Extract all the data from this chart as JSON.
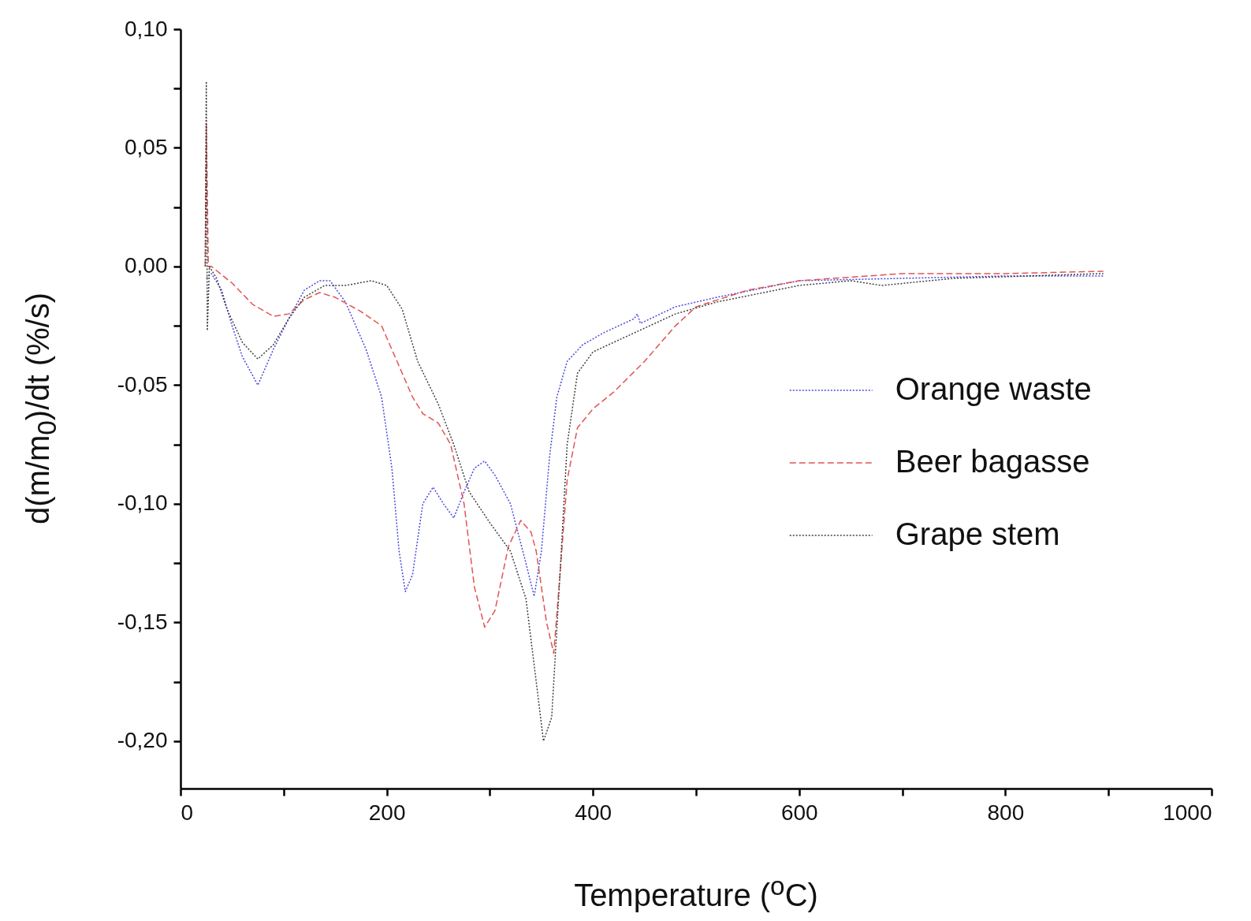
{
  "chart_data": {
    "type": "line",
    "xlabel": "Temperature ($^{o}$C)",
    "ylabel": "d(m/m$_{0}$)/dt (%/s)",
    "xlim": [
      0,
      1000
    ],
    "ylim": [
      -0.22,
      0.1
    ],
    "xticks": [
      0,
      {
        "value": 100,
        "label": null
      },
      200,
      {
        "value": 300,
        "label": null
      },
      400,
      {
        "value": 500,
        "label": null
      },
      600,
      {
        "value": 700,
        "label": null
      },
      800,
      {
        "value": 900,
        "label": null
      },
      1000
    ],
    "yticks": [
      {
        "value": -0.2,
        "label": "-0,20"
      },
      {
        "value": -0.175,
        "label": null
      },
      {
        "value": -0.15,
        "label": "-0,15"
      },
      {
        "value": -0.125,
        "label": null
      },
      {
        "value": -0.1,
        "label": "-0,10"
      },
      {
        "value": -0.075,
        "label": null
      },
      {
        "value": -0.05,
        "label": "-0,05"
      },
      {
        "value": -0.025,
        "label": null
      },
      {
        "value": 0,
        "label": "0,00"
      },
      {
        "value": 0.025,
        "label": null
      },
      {
        "value": 0.05,
        "label": "0,05"
      },
      {
        "value": 0.075,
        "label": null
      },
      {
        "value": 0.1,
        "label": "0,10"
      }
    ],
    "grid": false,
    "legend": "right",
    "series": [
      {
        "name": "Orange waste",
        "color": "#4848e0",
        "line_style": "dotted",
        "x": [
          25,
          30,
          40,
          50,
          60,
          75,
          90,
          105,
          120,
          135,
          145,
          160,
          180,
          195,
          205,
          212,
          218,
          225,
          235,
          245,
          255,
          265,
          275,
          285,
          295,
          305,
          320,
          335,
          343,
          350,
          358,
          365,
          375,
          390,
          410,
          440,
          443,
          446,
          480,
          520,
          600,
          700,
          800,
          895
        ],
        "values": [
          -0.005,
          -0.003,
          -0.01,
          -0.025,
          -0.038,
          -0.05,
          -0.035,
          -0.022,
          -0.01,
          -0.006,
          -0.006,
          -0.015,
          -0.035,
          -0.055,
          -0.085,
          -0.12,
          -0.137,
          -0.13,
          -0.1,
          -0.093,
          -0.1,
          -0.106,
          -0.095,
          -0.085,
          -0.082,
          -0.088,
          -0.1,
          -0.125,
          -0.139,
          -0.12,
          -0.08,
          -0.055,
          -0.04,
          -0.033,
          -0.028,
          -0.022,
          -0.02,
          -0.024,
          -0.017,
          -0.013,
          -0.006,
          -0.005,
          -0.004,
          -0.004
        ]
      },
      {
        "name": "Beer bagasse",
        "color": "#e05555",
        "line_style": "dashed",
        "x": [
          24,
          25,
          27,
          30,
          50,
          70,
          90,
          105,
          120,
          135,
          150,
          175,
          195,
          210,
          225,
          235,
          250,
          262,
          275,
          285,
          295,
          305,
          318,
          330,
          340,
          345,
          355,
          362,
          368,
          375,
          385,
          400,
          420,
          450,
          480,
          500,
          550,
          600,
          700,
          800,
          895
        ],
        "values": [
          0,
          0.06,
          0,
          0,
          -0.007,
          -0.016,
          -0.021,
          -0.02,
          -0.014,
          -0.011,
          -0.013,
          -0.019,
          -0.025,
          -0.04,
          -0.055,
          -0.062,
          -0.066,
          -0.075,
          -0.1,
          -0.135,
          -0.152,
          -0.145,
          -0.118,
          -0.107,
          -0.112,
          -0.12,
          -0.15,
          -0.163,
          -0.13,
          -0.09,
          -0.068,
          -0.06,
          -0.053,
          -0.04,
          -0.025,
          -0.017,
          -0.01,
          -0.006,
          -0.003,
          -0.003,
          -0.002
        ]
      },
      {
        "name": "Grape stem",
        "color": "#404040",
        "line_style": "dotted",
        "x": [
          24,
          25,
          26,
          28,
          35,
          45,
          60,
          75,
          90,
          105,
          120,
          140,
          160,
          185,
          200,
          215,
          230,
          250,
          265,
          280,
          300,
          320,
          335,
          345,
          352,
          360,
          368,
          375,
          385,
          400,
          440,
          480,
          520,
          600,
          650,
          680,
          750,
          895
        ],
        "values": [
          0,
          0.078,
          -0.027,
          0,
          -0.005,
          -0.018,
          -0.032,
          -0.039,
          -0.033,
          -0.022,
          -0.013,
          -0.008,
          -0.008,
          -0.006,
          -0.008,
          -0.018,
          -0.04,
          -0.058,
          -0.075,
          -0.095,
          -0.108,
          -0.12,
          -0.14,
          -0.175,
          -0.2,
          -0.19,
          -0.13,
          -0.075,
          -0.045,
          -0.036,
          -0.028,
          -0.02,
          -0.015,
          -0.008,
          -0.006,
          -0.008,
          -0.005,
          -0.003
        ]
      }
    ]
  }
}
